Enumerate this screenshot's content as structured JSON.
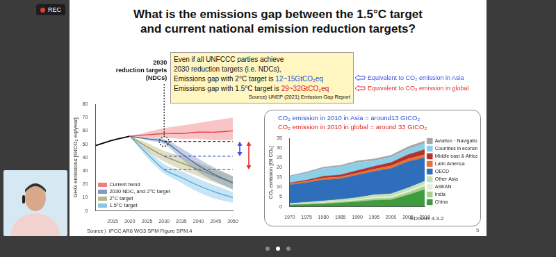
{
  "screen": {
    "rec": "REC",
    "page_number": "5"
  },
  "slide": {
    "title": [
      "What is the emissions gap between the 1.5°C target",
      "and current national emission reduction targets?"
    ],
    "callout": {
      "lines": [
        [
          {
            "text": "Even if all UNFCCC parties achieve"
          }
        ],
        [
          {
            "text": "2030 reduction targets (i.e. NDCs),"
          }
        ],
        [
          {
            "text": "Emissions gap with 2°C target is "
          },
          {
            "text": "12~15GtCO₂eq",
            "color": "#2b4fd6"
          }
        ],
        [
          {
            "text": "Emissions gap with 1.5°C target is "
          },
          {
            "text": "29~32GtCO₂eq",
            "color": "#e02020"
          }
        ]
      ],
      "source": "Source) UNEP (2021) Emission Gap Report"
    },
    "equivalents": [
      {
        "text": "Equivalent to CO₂ emission in Asia",
        "color": "#3c4fe0"
      },
      {
        "text": "Equivalent to CO₂ emission in global",
        "color": "#e8302a"
      }
    ],
    "box_lines": [
      {
        "text": "CO₂ emission in 2010 in Asia = around13 GtCO₂",
        "color": "#2b4fd6"
      },
      {
        "text": "CO₂ emission in 2010 in global = around 33 GtCO₂",
        "color": "#e02020"
      }
    ]
  },
  "chart_data": [
    {
      "type": "line",
      "y_label": "GHG emissions [GtCO₂ eq/year]",
      "source": "Source）IPCC AR6 WG3 SPM Figure SPM.4",
      "x": [
        2010,
        2015,
        2020,
        2025,
        2030,
        2035,
        2040,
        2045,
        2050
      ],
      "xlim": [
        2010,
        2050
      ],
      "xticks": [
        2015,
        2020,
        2025,
        2030,
        2035,
        2040,
        2045,
        2050
      ],
      "ylim": [
        0,
        80
      ],
      "yticks": [
        0,
        10,
        20,
        30,
        40,
        50,
        60,
        70,
        80
      ],
      "grid": false,
      "legend": "bottom-left",
      "series": [
        {
          "name": "Current trend",
          "color": "#e8474b",
          "values": [
            null,
            null,
            56,
            57,
            58,
            58,
            59,
            59,
            60
          ],
          "low": [
            null,
            null,
            56,
            55,
            55,
            54,
            54,
            53,
            53
          ],
          "high": [
            null,
            null,
            56,
            59,
            62,
            64,
            66,
            68,
            70
          ]
        },
        {
          "name": "2030 NDC, and 2°C target",
          "color": "#4a6fa5",
          "values": [
            null,
            null,
            56,
            54,
            52,
            43,
            34,
            27,
            21
          ],
          "low": [
            null,
            null,
            56,
            53,
            50,
            39,
            29,
            22,
            16
          ],
          "high": [
            null,
            null,
            56,
            55,
            54,
            47,
            39,
            32,
            26
          ]
        },
        {
          "name": "2°C target",
          "color": "#9a9a52",
          "values": [
            null,
            null,
            56,
            48,
            41,
            36,
            31,
            26,
            21
          ],
          "low": [
            null,
            null,
            56,
            45,
            37,
            31,
            26,
            21,
            16
          ],
          "high": [
            null,
            null,
            56,
            51,
            45,
            41,
            36,
            31,
            26
          ]
        },
        {
          "name": "1.5°C target",
          "color": "#56aee0",
          "values": [
            null,
            null,
            56,
            43,
            31,
            25,
            19,
            14,
            10
          ],
          "low": [
            null,
            null,
            56,
            40,
            28,
            21,
            14,
            9,
            6
          ],
          "high": [
            null,
            null,
            56,
            46,
            35,
            30,
            24,
            19,
            14
          ]
        },
        {
          "color": "#000000",
          "values": [
            49,
            53,
            56,
            null,
            null,
            null,
            null,
            null,
            null
          ]
        }
      ],
      "reference_lines": [
        {
          "value": 52,
          "x_start": 2030,
          "color": "#000000",
          "line_style": "dashed"
        },
        {
          "value": 41,
          "x_start": 2030,
          "color": "#3c4fe0",
          "line_style": "dashed"
        },
        {
          "value": 31,
          "x_start": 2030,
          "color": "#e8302a",
          "line_style": "dashed"
        }
      ],
      "gaps": [
        {
          "from": 52,
          "to": 41,
          "color": "#3c4fe0"
        },
        {
          "from": 52,
          "to": 31,
          "color": "#e8302a"
        }
      ],
      "annotation": {
        "lines": [
          "2030",
          "reduction targets",
          "(NDCs)"
        ],
        "x": 2030,
        "y": 52
      }
    },
    {
      "type": "area",
      "stacked": true,
      "y_label": "CO₂ emission [Gt CO₂]",
      "source": "EDGAR 4.3.2",
      "x": [
        1970,
        1975,
        1980,
        1985,
        1990,
        1995,
        2000,
        2005,
        2010
      ],
      "xlim": [
        1970,
        2010
      ],
      "xticks": [
        1970,
        1975,
        1980,
        1985,
        1990,
        1995,
        2000,
        2005,
        2010
      ],
      "ylim": [
        0,
        35
      ],
      "yticks": [
        0,
        5,
        10,
        15,
        20,
        25,
        30,
        35
      ],
      "grid": false,
      "legend": "right",
      "series": [
        {
          "name": "China",
          "color": "#3f9b3f",
          "values": [
            0.9,
            1.2,
            1.5,
            2.0,
            2.5,
            3.3,
            3.5,
            6.0,
            8.8
          ]
        },
        {
          "name": "India",
          "color": "#a9d18e",
          "values": [
            0.2,
            0.3,
            0.4,
            0.5,
            0.7,
            0.9,
            1.0,
            1.2,
            1.7
          ]
        },
        {
          "name": "ASEAN",
          "color": "#e2efd9",
          "values": [
            0.1,
            0.2,
            0.3,
            0.3,
            0.4,
            0.6,
            0.7,
            0.9,
            1.0
          ]
        },
        {
          "name": "Other Asia",
          "color": "#c5e0b4",
          "values": [
            0.5,
            0.6,
            0.8,
            0.9,
            1.1,
            1.3,
            1.4,
            1.5,
            1.6
          ]
        },
        {
          "name": "OECD",
          "color": "#2f6eba",
          "values": [
            9.5,
            10.0,
            10.8,
            10.6,
            11.5,
            12.0,
            13.0,
            13.5,
            12.0
          ]
        },
        {
          "name": "Latin America",
          "color": "#e97132",
          "values": [
            0.6,
            0.7,
            0.9,
            0.9,
            1.0,
            1.1,
            1.3,
            1.4,
            1.6
          ]
        },
        {
          "name": "Middle east & Africa",
          "color": "#b3312f",
          "values": [
            0.4,
            0.6,
            0.9,
            1.1,
            1.3,
            1.5,
            1.7,
            2.1,
            2.6
          ]
        },
        {
          "name": "Countries in economic transition",
          "color": "#8ccfe8",
          "values": [
            3.2,
            3.6,
            4.0,
            4.2,
            4.2,
            2.9,
            2.8,
            3.0,
            3.2
          ]
        },
        {
          "name": "Aviation・Navigation",
          "color": "#a5a5a5",
          "values": [
            0.5,
            0.6,
            0.7,
            0.7,
            0.8,
            0.9,
            1.0,
            1.1,
            1.2
          ]
        }
      ]
    }
  ]
}
